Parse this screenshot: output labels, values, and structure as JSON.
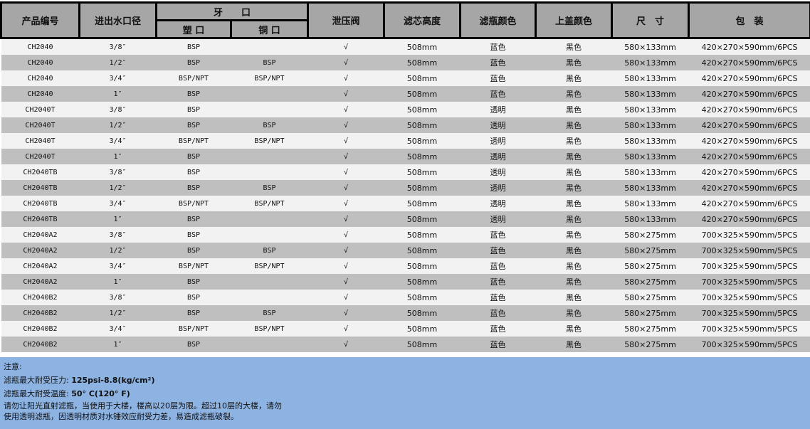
{
  "headers": {
    "model": "产品编号",
    "inlet": "进出水口径",
    "thread": "牙　　口",
    "plastic": "塑 口",
    "copper": "铜 口",
    "valve": "泄压阀",
    "height": "滤芯高度",
    "bowl_color": "滤瓶颜色",
    "cap_color": "上盖颜色",
    "size": "尺　寸",
    "package": "包　装"
  },
  "rows": [
    [
      "CH2040",
      "3/8″",
      "BSP",
      "",
      "√",
      "508mm",
      "蓝色",
      "黑色",
      "580×133mm",
      "420×270×590mm/6PCS"
    ],
    [
      "CH2040",
      "1/2″",
      "BSP",
      "BSP",
      "√",
      "508mm",
      "蓝色",
      "黑色",
      "580×133mm",
      "420×270×590mm/6PCS"
    ],
    [
      "CH2040",
      "3/4″",
      "BSP/NPT",
      "BSP/NPT",
      "√",
      "508mm",
      "蓝色",
      "黑色",
      "580×133mm",
      "420×270×590mm/6PCS"
    ],
    [
      "CH2040",
      "1″",
      "BSP",
      "",
      "√",
      "508mm",
      "蓝色",
      "黑色",
      "580×133mm",
      "420×270×590mm/6PCS"
    ],
    [
      "CH2040T",
      "3/8″",
      "BSP",
      "",
      "√",
      "508mm",
      "透明",
      "黑色",
      "580×133mm",
      "420×270×590mm/6PCS"
    ],
    [
      "CH2040T",
      "1/2″",
      "BSP",
      "BSP",
      "√",
      "508mm",
      "透明",
      "黑色",
      "580×133mm",
      "420×270×590mm/6PCS"
    ],
    [
      "CH2040T",
      "3/4″",
      "BSP/NPT",
      "BSP/NPT",
      "√",
      "508mm",
      "透明",
      "黑色",
      "580×133mm",
      "420×270×590mm/6PCS"
    ],
    [
      "CH2040T",
      "1″",
      "BSP",
      "",
      "√",
      "508mm",
      "透明",
      "黑色",
      "580×133mm",
      "420×270×590mm/6PCS"
    ],
    [
      "CH2040TB",
      "3/8″",
      "BSP",
      "",
      "√",
      "508mm",
      "透明",
      "黑色",
      "580×133mm",
      "420×270×590mm/6PCS"
    ],
    [
      "CH2040TB",
      "1/2″",
      "BSP",
      "BSP",
      "√",
      "508mm",
      "透明",
      "黑色",
      "580×133mm",
      "420×270×590mm/6PCS"
    ],
    [
      "CH2040TB",
      "3/4″",
      "BSP/NPT",
      "BSP/NPT",
      "√",
      "508mm",
      "透明",
      "黑色",
      "580×133mm",
      "420×270×590mm/6PCS"
    ],
    [
      "CH2040TB",
      "1″",
      "BSP",
      "",
      "√",
      "508mm",
      "透明",
      "黑色",
      "580×133mm",
      "420×270×590mm/6PCS"
    ],
    [
      "CH2040A2",
      "3/8″",
      "BSP",
      "",
      "√",
      "508mm",
      "蓝色",
      "黑色",
      "580×275mm",
      "700×325×590mm/5PCS"
    ],
    [
      "CH2040A2",
      "1/2″",
      "BSP",
      "BSP",
      "√",
      "508mm",
      "蓝色",
      "黑色",
      "580×275mm",
      "700×325×590mm/5PCS"
    ],
    [
      "CH2040A2",
      "3/4″",
      "BSP/NPT",
      "BSP/NPT",
      "√",
      "508mm",
      "蓝色",
      "黑色",
      "580×275mm",
      "700×325×590mm/5PCS"
    ],
    [
      "CH2040A2",
      "1″",
      "BSP",
      "",
      "√",
      "508mm",
      "蓝色",
      "黑色",
      "580×275mm",
      "700×325×590mm/5PCS"
    ],
    [
      "CH2040B2",
      "3/8″",
      "BSP",
      "",
      "√",
      "508mm",
      "蓝色",
      "黑色",
      "580×275mm",
      "700×325×590mm/5PCS"
    ],
    [
      "CH2040B2",
      "1/2″",
      "BSP",
      "BSP",
      "√",
      "508mm",
      "蓝色",
      "黑色",
      "580×275mm",
      "700×325×590mm/5PCS"
    ],
    [
      "CH2040B2",
      "3/4″",
      "BSP/NPT",
      "BSP/NPT",
      "√",
      "508mm",
      "蓝色",
      "黑色",
      "580×275mm",
      "700×325×590mm/5PCS"
    ],
    [
      "CH2040B2",
      "1″",
      "BSP",
      "",
      "√",
      "508mm",
      "蓝色",
      "黑色",
      "580×275mm",
      "700×325×590mm/5PCS"
    ]
  ],
  "notes": {
    "title": "注意:",
    "pressure_label": "滤瓶最大耐受压力:",
    "pressure_value": "125psi-8.8(kg/cm²)",
    "temp_label": "滤瓶最大耐受温度:",
    "temp_value": "50° C(120° F)",
    "line1": "请勿让阳光直射滤瓶，当使用于大楼，楼高以20层为限。超过10层的大楼，请勿",
    "line2": "使用透明滤瓶，因透明材质对水锤效应耐受力差，易造成滤瓶破裂。"
  },
  "colors": {
    "header_bg": "#a6a6a6",
    "row_light": "#f2f2f2",
    "row_dark": "#bfbfbf",
    "notes_bg": "#8db3e2"
  }
}
